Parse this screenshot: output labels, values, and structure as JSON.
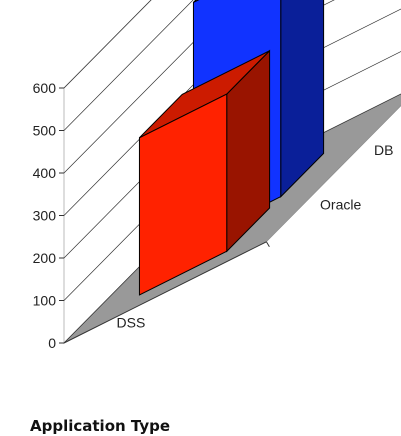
{
  "chart_data": {
    "type": "bar",
    "subtype": "3d-column",
    "xlabel": "Application Type",
    "categories": [
      "DSS"
    ],
    "series": [
      {
        "name": "Oracle",
        "values": [
          370
        ],
        "color": "#ff2200"
      },
      {
        "name": "DB",
        "values": [
          560
        ],
        "color": "#1133ff"
      }
    ],
    "y_ticks": [
      0,
      100,
      200,
      300,
      400,
      500,
      600
    ],
    "ylim": [
      0,
      600
    ],
    "grid": true,
    "legend": "none",
    "floor_color": "#999999",
    "wall_color": "#ffffff"
  }
}
